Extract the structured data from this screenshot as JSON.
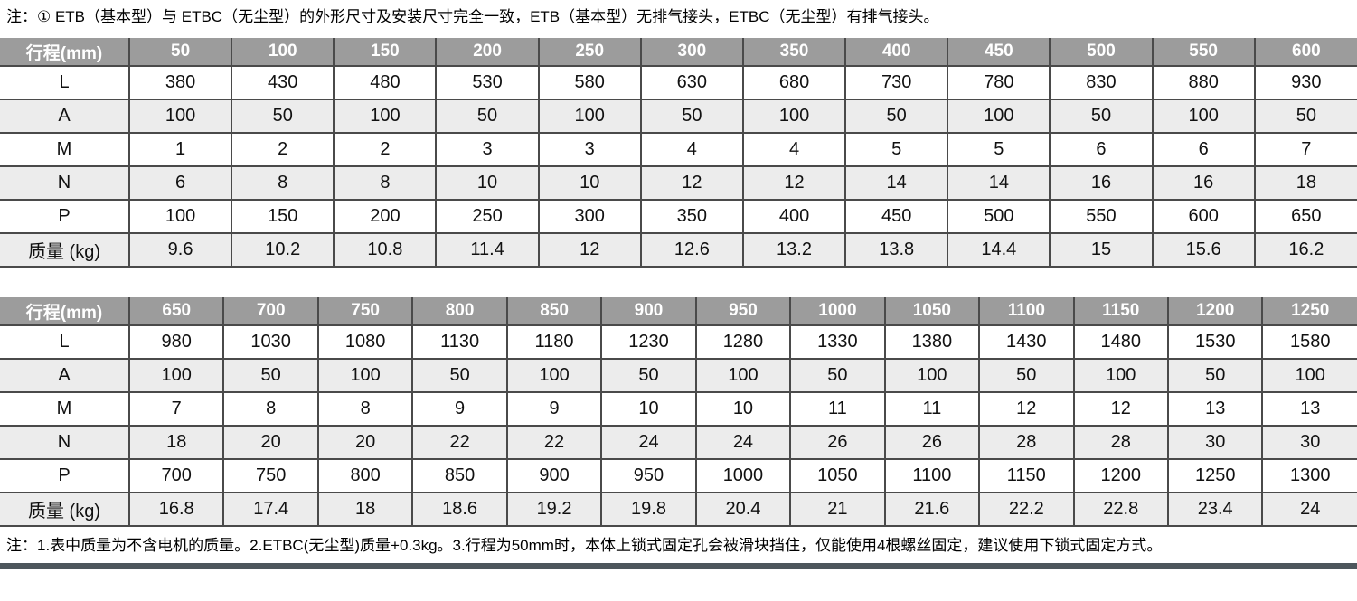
{
  "notes": {
    "top": "注：① ETB（基本型）与 ETBC（无尘型）的外形尺寸及安装尺寸完全一致，ETB（基本型）无排气接头，ETBC（无尘型）有排气接头。",
    "bottom": "注：1.表中质量为不含电机的质量。2.ETBC(无尘型)质量+0.3kg。3.行程为50mm时，本体上锁式固定孔会被滑块挡住，仅能使用4根螺丝固定，建议使用下锁式固定方式。"
  },
  "colors": {
    "header_bg": "#9c9c9c",
    "header_text": "#ffffff",
    "row_bg": "#ffffff",
    "row_alt_bg": "#ececec",
    "border_color": "#4a4a4a",
    "text_color": "#111111",
    "bottom_bar": "#4d565c"
  },
  "tables": [
    {
      "name": "stroke-dimensions-table-50-600",
      "header_label": "行程(mm)",
      "columns": [
        "50",
        "100",
        "150",
        "200",
        "250",
        "300",
        "350",
        "400",
        "450",
        "500",
        "550",
        "600"
      ],
      "rows": [
        {
          "label": "L",
          "values": [
            "380",
            "430",
            "480",
            "530",
            "580",
            "630",
            "680",
            "730",
            "780",
            "830",
            "880",
            "930"
          ]
        },
        {
          "label": "A",
          "values": [
            "100",
            "50",
            "100",
            "50",
            "100",
            "50",
            "100",
            "50",
            "100",
            "50",
            "100",
            "50"
          ]
        },
        {
          "label": "M",
          "values": [
            "1",
            "2",
            "2",
            "3",
            "3",
            "4",
            "4",
            "5",
            "5",
            "6",
            "6",
            "7"
          ]
        },
        {
          "label": "N",
          "values": [
            "6",
            "8",
            "8",
            "10",
            "10",
            "12",
            "12",
            "14",
            "14",
            "16",
            "16",
            "18"
          ]
        },
        {
          "label": "P",
          "values": [
            "100",
            "150",
            "200",
            "250",
            "300",
            "350",
            "400",
            "450",
            "500",
            "550",
            "600",
            "650"
          ]
        },
        {
          "label": "质量 (kg)",
          "values": [
            "9.6",
            "10.2",
            "10.8",
            "11.4",
            "12",
            "12.6",
            "13.2",
            "13.8",
            "14.4",
            "15",
            "15.6",
            "16.2"
          ]
        }
      ]
    },
    {
      "name": "stroke-dimensions-table-650-1250",
      "header_label": "行程(mm)",
      "columns": [
        "650",
        "700",
        "750",
        "800",
        "850",
        "900",
        "950",
        "1000",
        "1050",
        "1100",
        "1150",
        "1200",
        "1250"
      ],
      "rows": [
        {
          "label": "L",
          "values": [
            "980",
            "1030",
            "1080",
            "1130",
            "1180",
            "1230",
            "1280",
            "1330",
            "1380",
            "1430",
            "1480",
            "1530",
            "1580"
          ]
        },
        {
          "label": "A",
          "values": [
            "100",
            "50",
            "100",
            "50",
            "100",
            "50",
            "100",
            "50",
            "100",
            "50",
            "100",
            "50",
            "100"
          ]
        },
        {
          "label": "M",
          "values": [
            "7",
            "8",
            "8",
            "9",
            "9",
            "10",
            "10",
            "11",
            "11",
            "12",
            "12",
            "13",
            "13"
          ]
        },
        {
          "label": "N",
          "values": [
            "18",
            "20",
            "20",
            "22",
            "22",
            "24",
            "24",
            "26",
            "26",
            "28",
            "28",
            "30",
            "30"
          ]
        },
        {
          "label": "P",
          "values": [
            "700",
            "750",
            "800",
            "850",
            "900",
            "950",
            "1000",
            "1050",
            "1100",
            "1150",
            "1200",
            "1250",
            "1300"
          ]
        },
        {
          "label": "质量 (kg)",
          "values": [
            "16.8",
            "17.4",
            "18",
            "18.6",
            "19.2",
            "19.8",
            "20.4",
            "21",
            "21.6",
            "22.2",
            "22.8",
            "23.4",
            "24"
          ]
        }
      ]
    }
  ]
}
